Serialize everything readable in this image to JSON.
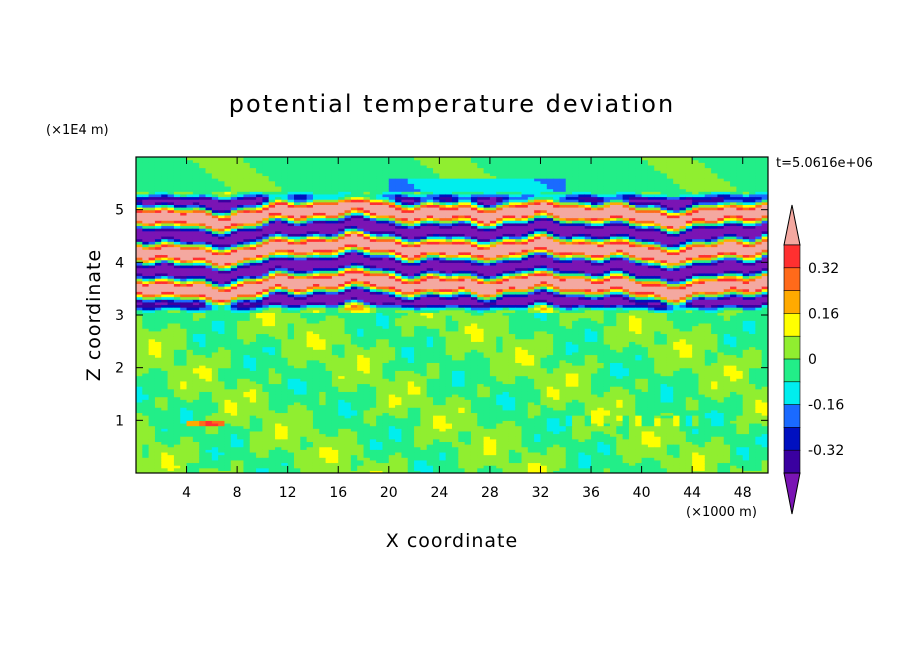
{
  "chart_data": {
    "type": "heatmap",
    "title": "potential temperature deviation",
    "xlabel": "X coordinate",
    "ylabel": "Z coordinate",
    "x_unit": "(×1000 m)",
    "y_unit": "(×1E4 m)",
    "time_label": "t=5.0616e+06",
    "x_ticks": [
      4,
      8,
      12,
      16,
      20,
      24,
      28,
      32,
      36,
      40,
      44,
      48
    ],
    "y_ticks": [
      1,
      2,
      3,
      4,
      5
    ],
    "xlim": [
      0,
      50
    ],
    "ylim": [
      0,
      6
    ],
    "colorbar": {
      "labels": [
        "0.32",
        "0.16",
        "0",
        "-0.16",
        "-0.32"
      ],
      "label_values": [
        0.32,
        0.16,
        0,
        -0.16,
        -0.32
      ],
      "levels_top_to_bottom": [
        {
          "min": 0.4,
          "max": null,
          "color": "#f4a8a0"
        },
        {
          "min": 0.32,
          "max": 0.4,
          "color": "#ff3030"
        },
        {
          "min": 0.24,
          "max": 0.32,
          "color": "#ff6a1a"
        },
        {
          "min": 0.16,
          "max": 0.24,
          "color": "#ffaa00"
        },
        {
          "min": 0.08,
          "max": 0.16,
          "color": "#ffff00"
        },
        {
          "min": 0.0,
          "max": 0.08,
          "color": "#90ee30"
        },
        {
          "min": -0.08,
          "max": 0.0,
          "color": "#22ee88"
        },
        {
          "min": -0.16,
          "max": -0.08,
          "color": "#00eeee"
        },
        {
          "min": -0.24,
          "max": -0.16,
          "color": "#1a6aff"
        },
        {
          "min": -0.32,
          "max": -0.24,
          "color": "#0010c0"
        },
        {
          "min": -0.4,
          "max": -0.32,
          "color": "#3a00a0"
        },
        {
          "min": null,
          "max": -0.4,
          "color": "#7a14b4"
        }
      ]
    }
  }
}
